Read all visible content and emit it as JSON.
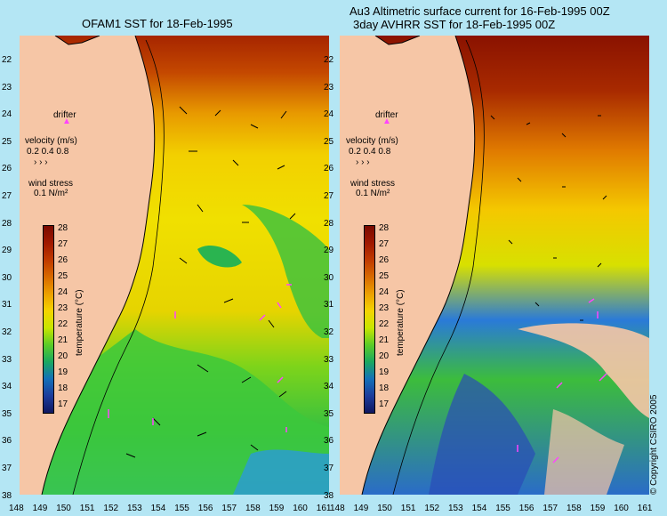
{
  "panels": {
    "left": {
      "title": "OFAM1 SST for 18-Feb-1995"
    },
    "right": {
      "title_line1": "Au3 Altimetric surface current for 16-Feb-1995 00Z",
      "title_line2": "3day AVHRR SST for 18-Feb-1995 00Z"
    }
  },
  "lat_labels": [
    "22",
    "23",
    "24",
    "25",
    "26",
    "27",
    "28",
    "29",
    "30",
    "31",
    "32",
    "33",
    "34",
    "35",
    "36",
    "37",
    "38"
  ],
  "lon_labels": [
    "148",
    "149",
    "150",
    "151",
    "152",
    "153",
    "154",
    "155",
    "156",
    "157",
    "158",
    "159",
    "160",
    "161"
  ],
  "legend": {
    "drifter": "drifter",
    "velocity": "velocity (m/s)",
    "velocity_values": "0.2 0.4 0.8",
    "wind_stress": "wind stress",
    "wind_value": "0.1 N/m²"
  },
  "colorbar": {
    "ticks": [
      "28",
      "27",
      "26",
      "25",
      "24",
      "23",
      "22",
      "21",
      "20",
      "19",
      "18",
      "17"
    ],
    "unit": "temperature (°C)",
    "colors": [
      "#7a0a00",
      "#a01800",
      "#c03a00",
      "#d86a00",
      "#eca000",
      "#f4d400",
      "#c8e600",
      "#5ccc28",
      "#1aa860",
      "#1470b8",
      "#1c3c9c",
      "#101860"
    ]
  },
  "copyright": "© Copyright CSIRO 2005",
  "colors": {
    "land": "#f6c6a6",
    "ocean_bg": "#b4e6f4",
    "drifter": "#ff44ff",
    "coastline": "#000000"
  }
}
